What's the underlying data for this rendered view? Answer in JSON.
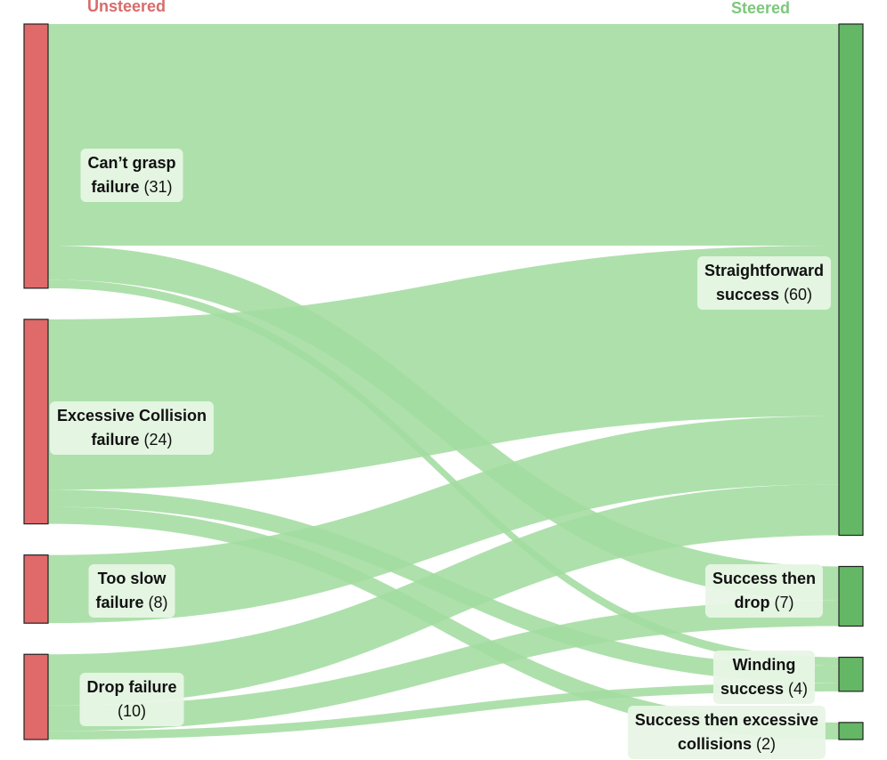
{
  "headers": {
    "left": "Unsteered",
    "right": "Steered"
  },
  "colors": {
    "source_node": "#e06969",
    "target_node": "#64b764",
    "link": "#a3dca0",
    "label_bg": "#e8f5e6"
  },
  "source_nodes": [
    {
      "id": "cant_grasp",
      "line1": "Can’t grasp",
      "line2": "failure",
      "count": "(31)",
      "value": 31
    },
    {
      "id": "collision",
      "line1": "Excessive Collision",
      "line2": "failure",
      "count": "(24)",
      "value": 24
    },
    {
      "id": "too_slow",
      "line1": "Too slow",
      "line2": "failure",
      "count": "(8)",
      "value": 8
    },
    {
      "id": "drop",
      "line1": "Drop failure",
      "line2": "",
      "count": "(10)",
      "value": 10
    }
  ],
  "target_nodes": [
    {
      "id": "straight",
      "line1": "Straightforward",
      "line2": "success",
      "count": "(60)",
      "value": 60
    },
    {
      "id": "then_drop",
      "line1": "Success then",
      "line2": "drop",
      "count": "(7)",
      "value": 7
    },
    {
      "id": "winding",
      "line1": "Winding",
      "line2": "success",
      "count": "(4)",
      "value": 4
    },
    {
      "id": "then_coll",
      "line1": "Success then excessive",
      "line2": "collisions",
      "count": "(2)",
      "value": 2
    }
  ],
  "links": [
    {
      "source": "cant_grasp",
      "target": "straight",
      "value": 26
    },
    {
      "source": "cant_grasp",
      "target": "then_drop",
      "value": 4
    },
    {
      "source": "cant_grasp",
      "target": "winding",
      "value": 1
    },
    {
      "source": "collision",
      "target": "straight",
      "value": 20
    },
    {
      "source": "collision",
      "target": "winding",
      "value": 2
    },
    {
      "source": "collision",
      "target": "then_coll",
      "value": 2
    },
    {
      "source": "too_slow",
      "target": "straight",
      "value": 8
    },
    {
      "source": "drop",
      "target": "straight",
      "value": 6
    },
    {
      "source": "drop",
      "target": "then_drop",
      "value": 3
    },
    {
      "source": "drop",
      "target": "winding",
      "value": 1
    }
  ]
}
